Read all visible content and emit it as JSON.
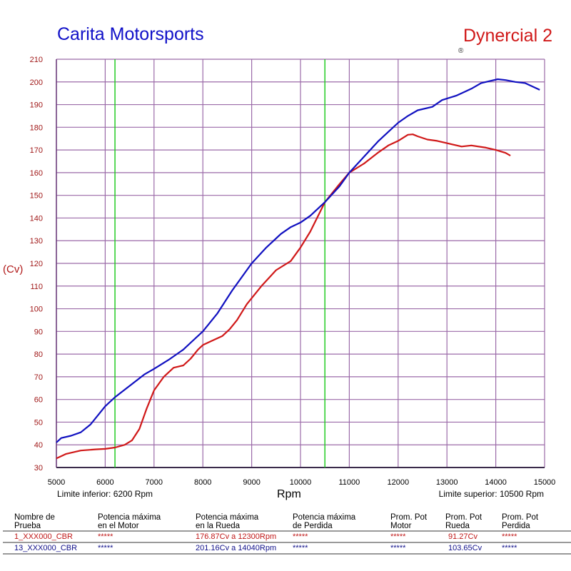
{
  "header": {
    "title": "Carita Motorsports",
    "brand": "Dynercial 2",
    "registered": "®"
  },
  "limits": {
    "lower_label": "Limite inferior:  6200 Rpm",
    "upper_label": "Limite superior:  10500 Rpm",
    "lower_rpm": 6200,
    "upper_rpm": 10500
  },
  "colors": {
    "series1": "#d01818",
    "series2": "#1010c0",
    "grid": "#9b6aa8",
    "limits": "#22cc22"
  },
  "chart_data": {
    "type": "line",
    "title": "",
    "xlabel": "Rpm",
    "ylabel": "(Cv)",
    "xlim": [
      5000,
      15000
    ],
    "ylim": [
      30,
      210
    ],
    "xticks": [
      5000,
      6000,
      7000,
      8000,
      9000,
      10000,
      11000,
      12000,
      13000,
      14000,
      15000
    ],
    "yticks": [
      30,
      40,
      50,
      60,
      70,
      80,
      90,
      100,
      110,
      120,
      130,
      140,
      150,
      160,
      170,
      180,
      190,
      200,
      210
    ],
    "grid": true,
    "series": [
      {
        "name": "1_XXX000_CBR",
        "color": "#d01818",
        "x": [
          5000,
          5200,
          5500,
          5800,
          6000,
          6200,
          6400,
          6550,
          6700,
          6850,
          7000,
          7200,
          7400,
          7600,
          7750,
          7900,
          8000,
          8200,
          8400,
          8550,
          8700,
          8900,
          9200,
          9500,
          9800,
          10000,
          10200,
          10500,
          10800,
          11000,
          11300,
          11600,
          11800,
          12000,
          12200,
          12300,
          12400,
          12600,
          12800,
          13000,
          13300,
          13500,
          13800,
          14000,
          14200,
          14300
        ],
        "y": [
          34,
          36,
          37.5,
          38,
          38.2,
          38.8,
          40,
          42,
          47,
          56,
          64,
          70,
          74,
          75,
          78,
          82,
          84,
          86,
          88,
          91,
          95,
          102,
          110,
          117,
          121,
          127,
          134,
          147,
          155,
          160,
          164,
          169,
          172,
          174,
          176.7,
          176.9,
          176,
          174.6,
          174,
          173,
          171.5,
          172,
          171,
          170,
          168.7,
          167.5
        ]
      },
      {
        "name": "13_XXX000_CBR",
        "color": "#1010c0",
        "x": [
          5000,
          5100,
          5300,
          5500,
          5700,
          6000,
          6200,
          6500,
          6800,
          7000,
          7300,
          7600,
          7800,
          8000,
          8300,
          8600,
          9000,
          9300,
          9600,
          9800,
          10000,
          10200,
          10500,
          10800,
          11000,
          11300,
          11600,
          11800,
          12000,
          12200,
          12400,
          12700,
          12900,
          13200,
          13500,
          13700,
          13900,
          14040,
          14200,
          14400,
          14600,
          14750,
          14900
        ],
        "y": [
          41,
          43,
          44,
          45.5,
          49,
          57,
          61,
          66,
          71,
          73.5,
          77.5,
          82,
          86,
          90,
          98,
          108,
          120,
          127,
          133,
          136,
          138,
          141,
          147,
          154,
          160,
          167,
          174,
          178,
          182,
          185,
          187.5,
          189,
          192,
          194,
          197,
          199.5,
          200.5,
          201.2,
          200.8,
          200,
          199.5,
          198,
          196.5
        ]
      }
    ]
  },
  "table": {
    "headers": [
      [
        "Nombre de",
        "Prueba"
      ],
      [
        "Potencia máxima",
        "en el Motor"
      ],
      [
        "Potencia máxima",
        "en la Rueda"
      ],
      [
        "Potencia máxima",
        "de Perdida"
      ],
      [
        "Prom. Pot",
        "Motor"
      ],
      [
        "Prom. Pot",
        "Rueda"
      ],
      [
        "Prom. Pot",
        "Perdida"
      ]
    ],
    "rows": [
      [
        "1_XXX000_CBR",
        "*****",
        "176.87Cv a  12300Rpm",
        "*****",
        "*****",
        "91.27Cv",
        "*****"
      ],
      [
        "13_XXX000_CBR",
        "*****",
        "201.16Cv a  14040Rpm",
        "*****",
        "*****",
        "103.65Cv",
        "*****"
      ]
    ]
  }
}
